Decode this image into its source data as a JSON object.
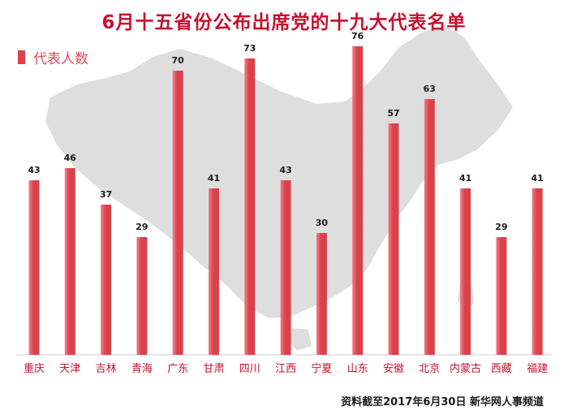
{
  "title": "6月十五省份公布出席党的十九大代表名单",
  "legend": "代表人数",
  "source": "资料截至2017年6月30日  新华网人事频道",
  "colors": {
    "title": "#c8102e",
    "bar": "#d9414c",
    "bar_light": "#f08088",
    "legend_text": "#e04a55",
    "category_text": "#c8102e",
    "map": "#dedede"
  },
  "chart_data": {
    "type": "bar",
    "title": "6月十五省份公布出席党的十九大代表名单",
    "categories": [
      "重庆",
      "天津",
      "吉林",
      "青海",
      "广东",
      "甘肃",
      "四川",
      "江西",
      "宁夏",
      "山东",
      "安徽",
      "北京",
      "内蒙古",
      "西藏",
      "福建"
    ],
    "series": [
      {
        "name": "代表人数",
        "values": [
          43,
          46,
          37,
          29,
          70,
          41,
          73,
          43,
          30,
          76,
          57,
          63,
          41,
          29,
          41
        ]
      }
    ],
    "ylim": [
      0,
      80
    ],
    "grid": false,
    "legend_position": "top-left"
  }
}
